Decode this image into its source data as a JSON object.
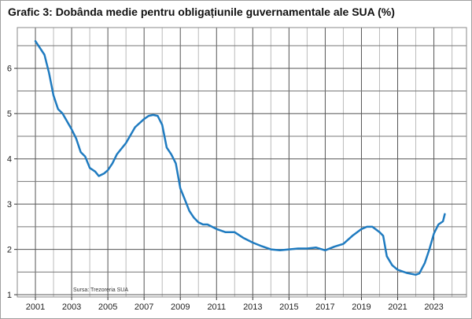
{
  "chart_data": {
    "type": "line",
    "title": "Grafic 3: Dobânda medie pentru obligațiunile guvernamentale ale SUA (%)",
    "source": "Sursa: Trezoreria SUA",
    "xlabel": "",
    "ylabel": "",
    "xlim": [
      2000,
      2024.8
    ],
    "ylim": [
      0.95,
      6.9
    ],
    "x_ticks": [
      "2001",
      "2003",
      "2005",
      "2007",
      "2009",
      "2011",
      "2013",
      "2015",
      "2017",
      "2019",
      "2021",
      "2023"
    ],
    "y_ticks": [
      "1",
      "2",
      "3",
      "4",
      "5",
      "6"
    ],
    "grid": true,
    "line_color": "#1f7bc0",
    "series": [
      {
        "x": [
          2001.0,
          2001.5,
          2001.75,
          2002.0,
          2002.25,
          2002.5,
          2003.0,
          2003.25,
          2003.5,
          2003.75,
          2004.0,
          2004.3,
          2004.5,
          2004.8,
          2005.0,
          2005.25,
          2005.5,
          2006.0,
          2006.5,
          2007.0,
          2007.25,
          2007.5,
          2007.75,
          2008.0,
          2008.25,
          2008.5,
          2008.75,
          2009.0,
          2009.25,
          2009.5,
          2009.75,
          2010.0,
          2010.25,
          2010.5,
          2010.75,
          2011.0,
          2011.5,
          2012.0,
          2012.5,
          2013.0,
          2013.5,
          2014.0,
          2014.5,
          2015.0,
          2015.5,
          2016.0,
          2016.5,
          2017.0,
          2017.5,
          2018.0,
          2018.5,
          2019.0,
          2019.3,
          2019.6,
          2020.0,
          2020.2,
          2020.4,
          2020.7,
          2021.0,
          2021.5,
          2022.0,
          2022.2,
          2022.5,
          2022.75,
          2023.0,
          2023.25,
          2023.5,
          2023.6
        ],
        "values": [
          6.6,
          6.3,
          5.9,
          5.4,
          5.1,
          5.0,
          4.65,
          4.45,
          4.15,
          4.05,
          3.8,
          3.72,
          3.62,
          3.68,
          3.75,
          3.9,
          4.1,
          4.35,
          4.7,
          4.88,
          4.95,
          4.97,
          4.95,
          4.75,
          4.25,
          4.1,
          3.9,
          3.35,
          3.1,
          2.85,
          2.7,
          2.6,
          2.55,
          2.55,
          2.5,
          2.45,
          2.38,
          2.38,
          2.25,
          2.15,
          2.07,
          2.0,
          1.98,
          2.0,
          2.02,
          2.02,
          2.04,
          1.98,
          2.06,
          2.12,
          2.3,
          2.45,
          2.5,
          2.5,
          2.38,
          2.3,
          1.85,
          1.65,
          1.55,
          1.48,
          1.44,
          1.47,
          1.7,
          2.0,
          2.35,
          2.55,
          2.62,
          2.78
        ]
      }
    ]
  }
}
